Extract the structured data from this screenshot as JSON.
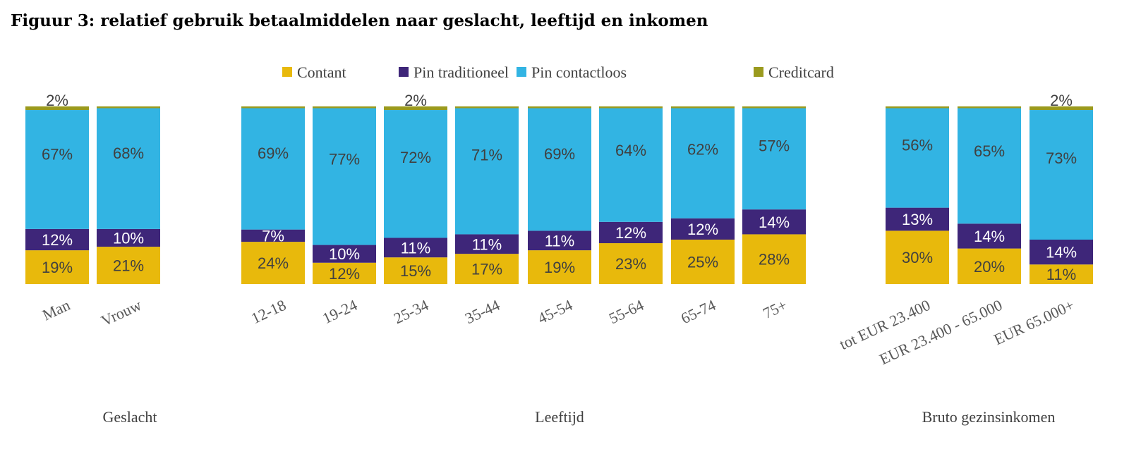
{
  "chart_data": {
    "type": "bar",
    "stacked": true,
    "normalized": true,
    "title": "Figuur 3: relatief gebruik betaalmiddelen naar geslacht, leeftijd en inkomen",
    "legend": {
      "position": "top",
      "entries": [
        "Contant",
        "Pin traditioneel",
        "Pin contactloos",
        "Creditcard"
      ]
    },
    "colors": {
      "Contant": "#E8B90C",
      "Pin traditioneel": "#3E2679",
      "Pin contactloos": "#32B4E3",
      "Creditcard": "#9A9A1E"
    },
    "ylim": [
      0,
      100
    ],
    "groups": [
      {
        "label": "Geslacht",
        "categories": [
          {
            "label": "Man",
            "values": [
              19,
              12,
              67,
              2
            ],
            "labels": [
              "19%",
              "12%",
              "67%",
              "2%"
            ]
          },
          {
            "label": "Vrouw",
            "values": [
              21,
              10,
              68,
              1
            ],
            "labels": [
              "21%",
              "10%",
              "68%",
              ""
            ]
          }
        ]
      },
      {
        "label": "Leeftijd",
        "categories": [
          {
            "label": "12-18",
            "values": [
              24,
              7,
              69,
              1
            ],
            "labels": [
              "24%",
              "7%",
              "69%",
              ""
            ]
          },
          {
            "label": "19-24",
            "values": [
              12,
              10,
              77,
              1
            ],
            "labels": [
              "12%",
              "10%",
              "77%",
              ""
            ]
          },
          {
            "label": "25-34",
            "values": [
              15,
              11,
              72,
              2
            ],
            "labels": [
              "15%",
              "11%",
              "72%",
              "2%"
            ]
          },
          {
            "label": "35-44",
            "values": [
              17,
              11,
              71,
              1
            ],
            "labels": [
              "17%",
              "11%",
              "71%",
              ""
            ]
          },
          {
            "label": "45-54",
            "values": [
              19,
              11,
              69,
              1
            ],
            "labels": [
              "19%",
              "11%",
              "69%",
              ""
            ]
          },
          {
            "label": "55-64",
            "values": [
              23,
              12,
              64,
              1
            ],
            "labels": [
              "23%",
              "12%",
              "64%",
              ""
            ]
          },
          {
            "label": "65-74",
            "values": [
              25,
              12,
              62,
              1
            ],
            "labels": [
              "25%",
              "12%",
              "62%",
              ""
            ]
          },
          {
            "label": "75+",
            "values": [
              28,
              14,
              57,
              1
            ],
            "labels": [
              "28%",
              "14%",
              "57%",
              ""
            ]
          }
        ]
      },
      {
        "label": "Bruto gezinsinkomen",
        "categories": [
          {
            "label": "tot EUR 23.400",
            "values": [
              30,
              13,
              56,
              1
            ],
            "labels": [
              "30%",
              "13%",
              "56%",
              ""
            ]
          },
          {
            "label": "EUR 23.400 - 65.000",
            "values": [
              20,
              14,
              65,
              1
            ],
            "labels": [
              "20%",
              "14%",
              "65%",
              ""
            ]
          },
          {
            "label": "EUR 65.000+",
            "values": [
              11,
              14,
              73,
              2
            ],
            "labels": [
              "11%",
              "14%",
              "73%",
              "2%"
            ]
          }
        ]
      }
    ]
  }
}
